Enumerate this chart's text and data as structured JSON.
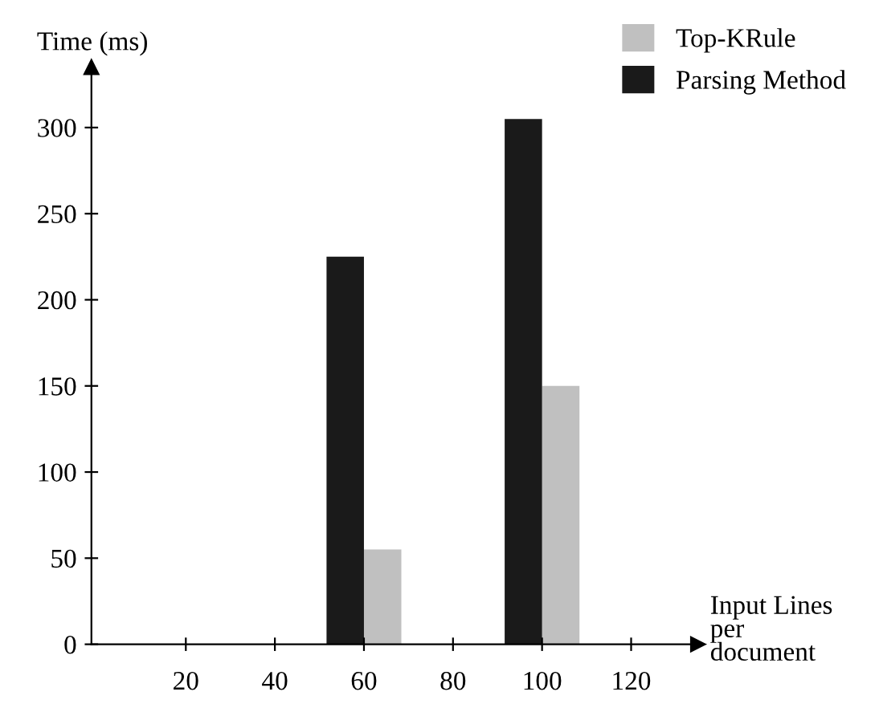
{
  "chart_data": {
    "type": "bar",
    "xlabel": "Input Lines\nper\ndocument",
    "ylabel": "Time (ms)",
    "categories": [
      "20",
      "40",
      "60",
      "80",
      "100",
      "120"
    ],
    "series": [
      {
        "name": "Top-KRule",
        "color": "#c0c0c0",
        "values": [
          null,
          null,
          55,
          null,
          150,
          null
        ]
      },
      {
        "name": "Parsing Method",
        "color": "#1a1a1a",
        "values": [
          null,
          null,
          225,
          null,
          305,
          null
        ]
      }
    ],
    "ylim": [
      0,
      335
    ],
    "yticks": [
      0,
      50,
      100,
      150,
      200,
      250,
      300
    ],
    "grid": false,
    "legend": "top right"
  }
}
